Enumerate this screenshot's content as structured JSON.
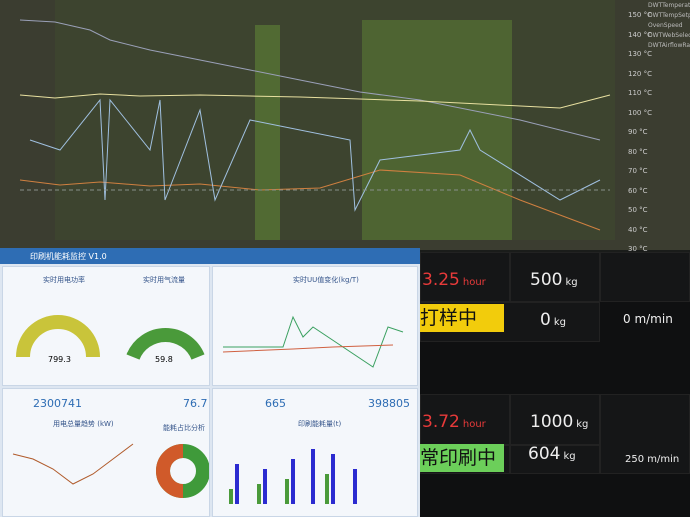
{
  "top_monitor": {
    "axis_labels": [
      "150 °C",
      "140 °C",
      "130 °C",
      "120 °C",
      "110 °C",
      "100 °C",
      "90 °C",
      "80 °C",
      "70 °C",
      "60 °C",
      "50 °C",
      "40 °C",
      "30 °C"
    ],
    "legend": [
      "DWTTemperature",
      "DWTTempSetpoint",
      "OvenSpeed",
      "DWTWebSelector",
      "DWTAirflowRate"
    ]
  },
  "energy_dashboard": {
    "header": "印刷机能耗监控 V1.0",
    "gauges": [
      {
        "title": "实时用电功率",
        "value": "799.3"
      },
      {
        "title": "实时用气流量",
        "value": "59.8"
      }
    ],
    "trend_title": "实时UU值变化(kg/T)",
    "counters": [
      "2300741",
      "76.7",
      "665",
      "398805"
    ],
    "line_title": "用电总量趋势 (kW)",
    "donut_title": "能耗占比分析",
    "bar_title": "印刷能耗量(t)"
  },
  "press_monitor": {
    "rows": [
      {
        "time": "3.25",
        "time_unit": "hour",
        "weight": "500",
        "weight_unit": "kg",
        "waste": "0",
        "waste_unit": "kg",
        "speed": "0 m/min",
        "status": "打样中"
      },
      {
        "time": "3.72",
        "time_unit": "hour",
        "weight": "1000",
        "weight_unit": "kg",
        "waste": "604",
        "waste_unit": "kg",
        "speed": "250 m/min",
        "status": "常印刷中"
      }
    ]
  }
}
